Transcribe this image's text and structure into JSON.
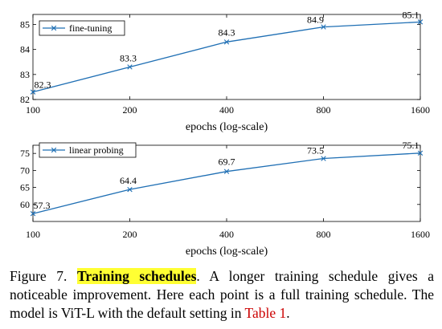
{
  "chart_data": [
    {
      "type": "line",
      "x": [
        100,
        200,
        400,
        800,
        1600
      ],
      "xscale": "log",
      "x_tick_labels": [
        "100",
        "200",
        "400",
        "800",
        "1600"
      ],
      "xlabel": "epochs (log-scale)",
      "series": [
        {
          "name": "fine-tuning",
          "values": [
            82.3,
            83.3,
            84.3,
            84.9,
            85.1
          ]
        }
      ],
      "data_labels": [
        "82.3",
        "83.3",
        "84.3",
        "84.9",
        "85.1"
      ],
      "y_ticks": [
        82,
        83,
        84,
        85
      ],
      "ylim": [
        82,
        85.4
      ],
      "legend_position": "top-left",
      "grid": false,
      "color": "#1f6fb4"
    },
    {
      "type": "line",
      "x": [
        100,
        200,
        400,
        800,
        1600
      ],
      "xscale": "log",
      "x_tick_labels": [
        "100",
        "200",
        "400",
        "800",
        "1600"
      ],
      "xlabel": "epochs (log-scale)",
      "series": [
        {
          "name": "linear probing",
          "values": [
            57.3,
            64.4,
            69.7,
            73.5,
            75.1
          ]
        }
      ],
      "data_labels": [
        "57.3",
        "64.4",
        "69.7",
        "73.5",
        "75.1"
      ],
      "y_ticks": [
        60,
        65,
        70,
        75
      ],
      "ylim": [
        55,
        77.4
      ],
      "legend_position": "top-left",
      "grid": false,
      "color": "#1f6fb4"
    }
  ],
  "caption": {
    "figure_label": "Figure 7.",
    "highlight": "Training schedules",
    "text_1": ". A longer training schedule gives a noticeable improvement. Here each point is a full training schedule. The model is ViT-L with the default setting in ",
    "table_ref": "Table 1",
    "text_2": "."
  }
}
